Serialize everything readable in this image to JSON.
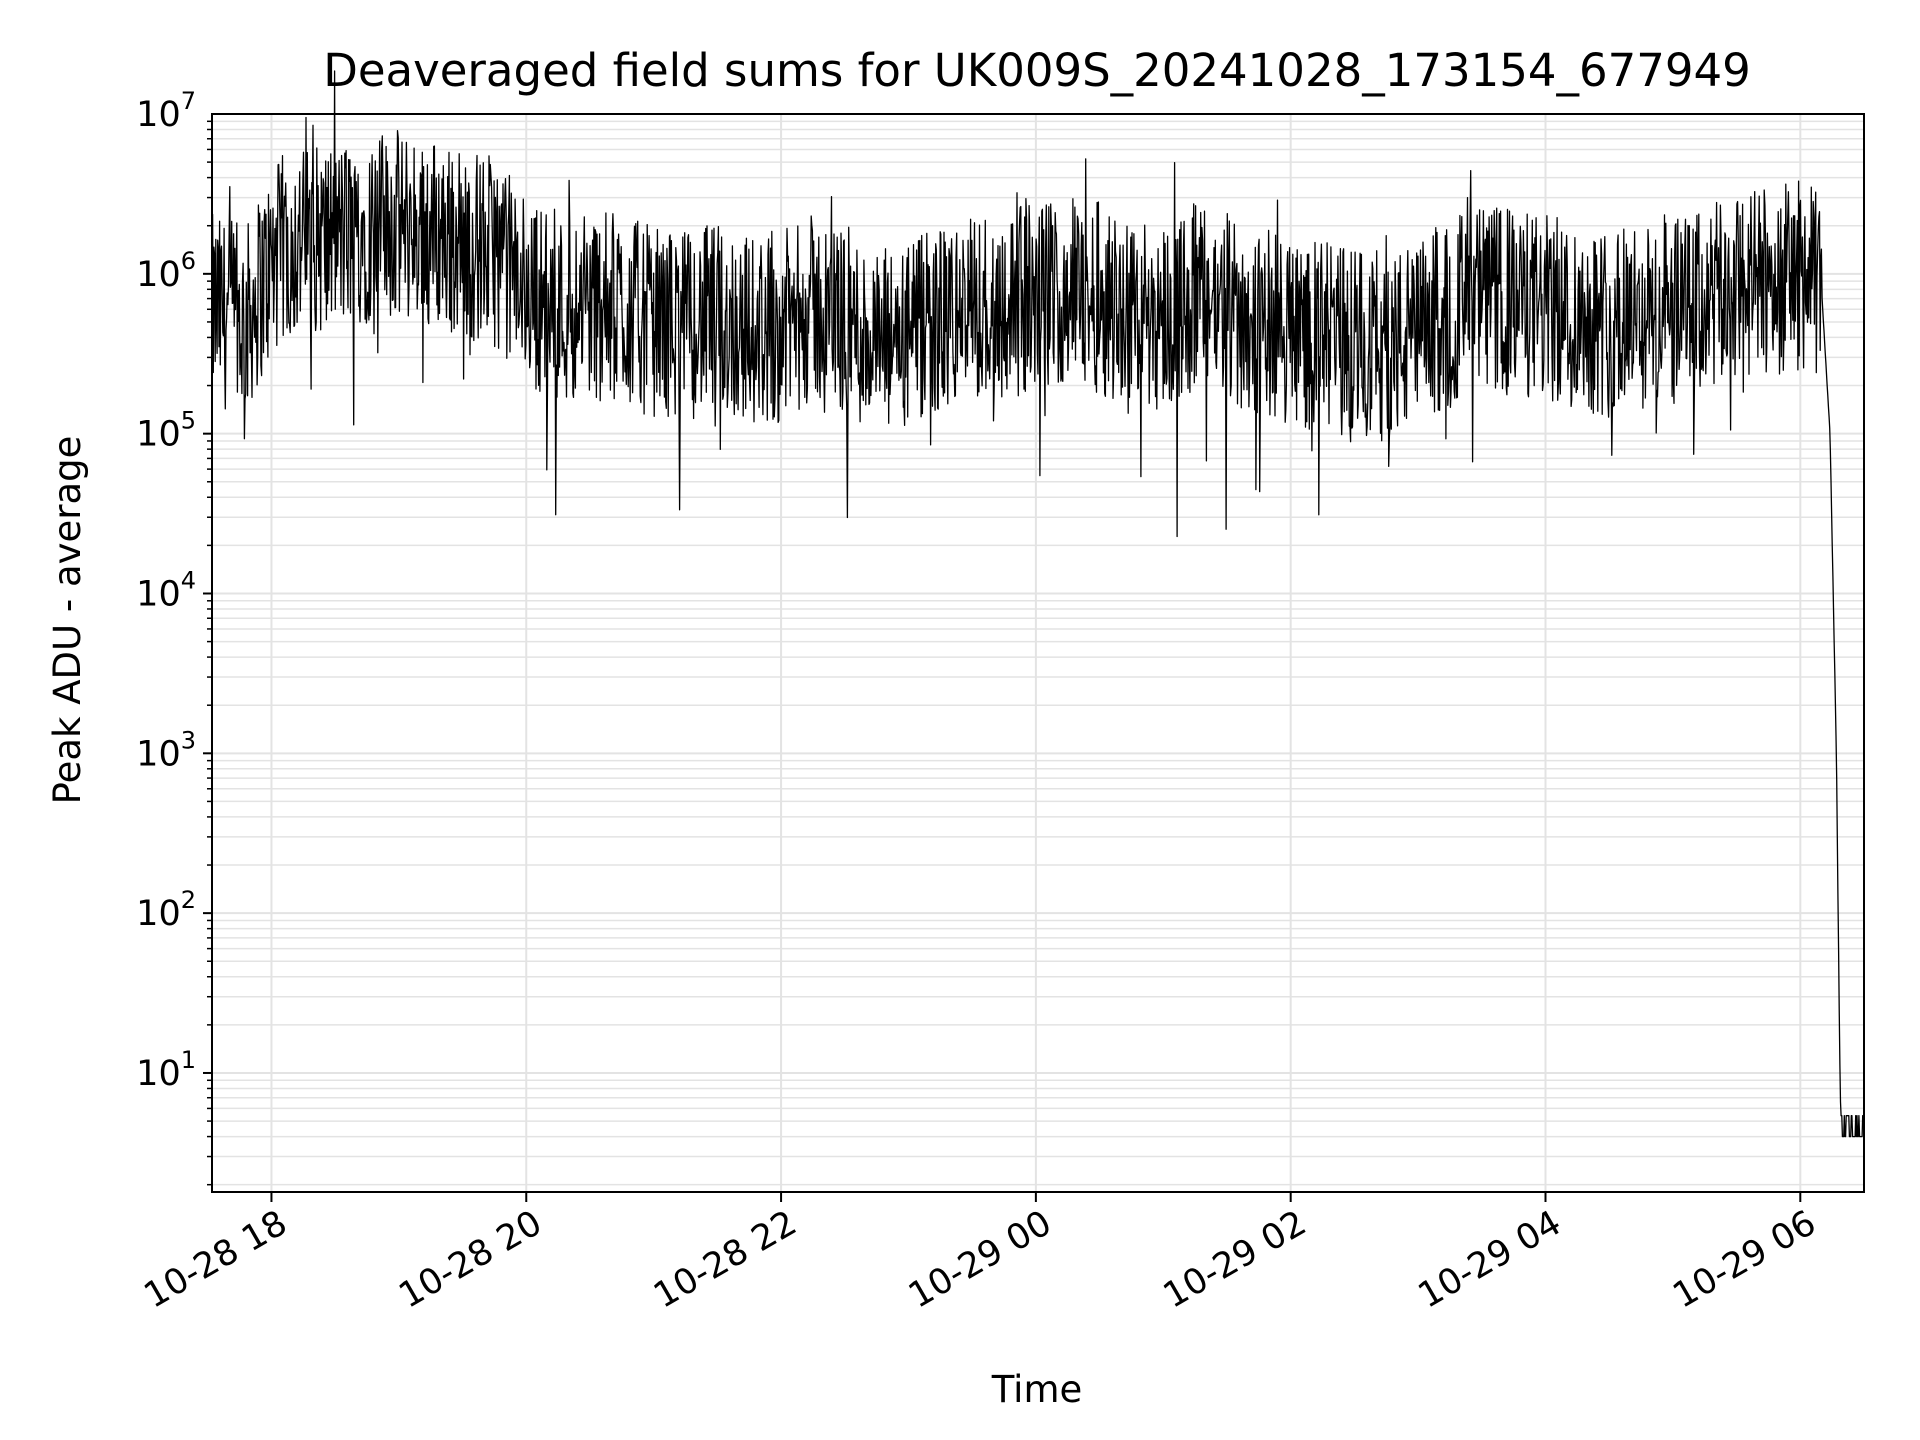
{
  "chart_data": {
    "type": "line",
    "title": "Deaveraged field sums for UK009S_20241028_173154_677949",
    "xlabel": "Time",
    "ylabel": "Peak ADU - average",
    "y_scale": "log",
    "ylim": [
      1.8,
      10000000
    ],
    "xlim": [
      "2024-10-28 17:32",
      "2024-10-29 06:30"
    ],
    "grid": true,
    "line_color": "#000000",
    "grid_color": "#e3e3e3",
    "x_ticks": [
      {
        "t": "2024-10-28 18:00",
        "label": "10-28 18"
      },
      {
        "t": "2024-10-28 20:00",
        "label": "10-28 20"
      },
      {
        "t": "2024-10-28 22:00",
        "label": "10-28 22"
      },
      {
        "t": "2024-10-29 00:00",
        "label": "10-29 00"
      },
      {
        "t": "2024-10-29 02:00",
        "label": "10-29 02"
      },
      {
        "t": "2024-10-29 04:00",
        "label": "10-29 04"
      },
      {
        "t": "2024-10-29 06:00",
        "label": "10-29 06"
      }
    ],
    "y_ticks": [
      {
        "v": 10,
        "base": "10",
        "exp": "1"
      },
      {
        "v": 100,
        "base": "10",
        "exp": "2"
      },
      {
        "v": 1000,
        "base": "10",
        "exp": "3"
      },
      {
        "v": 10000,
        "base": "10",
        "exp": "4"
      },
      {
        "v": 100000,
        "base": "10",
        "exp": "5"
      },
      {
        "v": 1000000,
        "base": "10",
        "exp": "6"
      },
      {
        "v": 10000000,
        "base": "10",
        "exp": "7"
      }
    ],
    "series": [
      {
        "x": [
          "2024-10-28 17:32",
          "2024-10-28 17:40",
          "2024-10-28 17:48",
          "2024-10-28 17:56",
          "2024-10-28 18:05",
          "2024-10-28 18:15",
          "2024-10-28 18:30",
          "2024-10-28 18:45",
          "2024-10-28 19:00",
          "2024-10-28 19:15",
          "2024-10-28 19:30",
          "2024-10-28 19:45",
          "2024-10-28 20:00",
          "2024-10-28 20:15",
          "2024-10-28 20:30",
          "2024-10-28 20:45",
          "2024-10-28 21:00",
          "2024-10-28 21:15",
          "2024-10-28 21:30",
          "2024-10-28 21:45",
          "2024-10-28 22:00",
          "2024-10-28 22:15",
          "2024-10-28 22:30",
          "2024-10-28 22:45",
          "2024-10-28 23:00",
          "2024-10-28 23:15",
          "2024-10-28 23:30",
          "2024-10-28 23:45",
          "2024-10-29 00:00",
          "2024-10-29 00:15",
          "2024-10-29 00:30",
          "2024-10-29 00:45",
          "2024-10-29 01:00",
          "2024-10-29 01:15",
          "2024-10-29 01:30",
          "2024-10-29 01:45",
          "2024-10-29 02:00",
          "2024-10-29 02:15",
          "2024-10-29 02:30",
          "2024-10-29 02:45",
          "2024-10-29 03:00",
          "2024-10-29 03:15",
          "2024-10-29 03:30",
          "2024-10-29 03:45",
          "2024-10-29 04:00",
          "2024-10-29 04:15",
          "2024-10-29 04:30",
          "2024-10-29 04:45",
          "2024-10-29 05:00",
          "2024-10-29 05:15",
          "2024-10-29 05:30",
          "2024-10-29 05:45",
          "2024-10-29 06:00",
          "2024-10-29 06:10",
          "2024-10-29 06:14",
          "2024-10-29 06:17",
          "2024-10-29 06:19",
          "2024-10-29 06:20",
          "2024-10-29 06:21",
          "2024-10-29 06:30"
        ],
        "y": [
          600000,
          550000,
          500000,
          900000,
          1400000,
          1600000,
          1700000,
          1900000,
          2000000,
          1900000,
          1500000,
          1400000,
          800000,
          600000,
          650000,
          600000,
          500000,
          480000,
          520000,
          450000,
          460000,
          600000,
          520000,
          350000,
          400000,
          500000,
          600000,
          650000,
          700000,
          800000,
          700000,
          600000,
          550000,
          700000,
          600000,
          500000,
          450000,
          400000,
          380000,
          350000,
          400000,
          600000,
          700000,
          650000,
          600000,
          550000,
          500000,
          520000,
          550000,
          650000,
          800000,
          900000,
          1000000,
          800000,
          100000,
          1000,
          4,
          4,
          4,
          4
        ]
      }
    ]
  }
}
